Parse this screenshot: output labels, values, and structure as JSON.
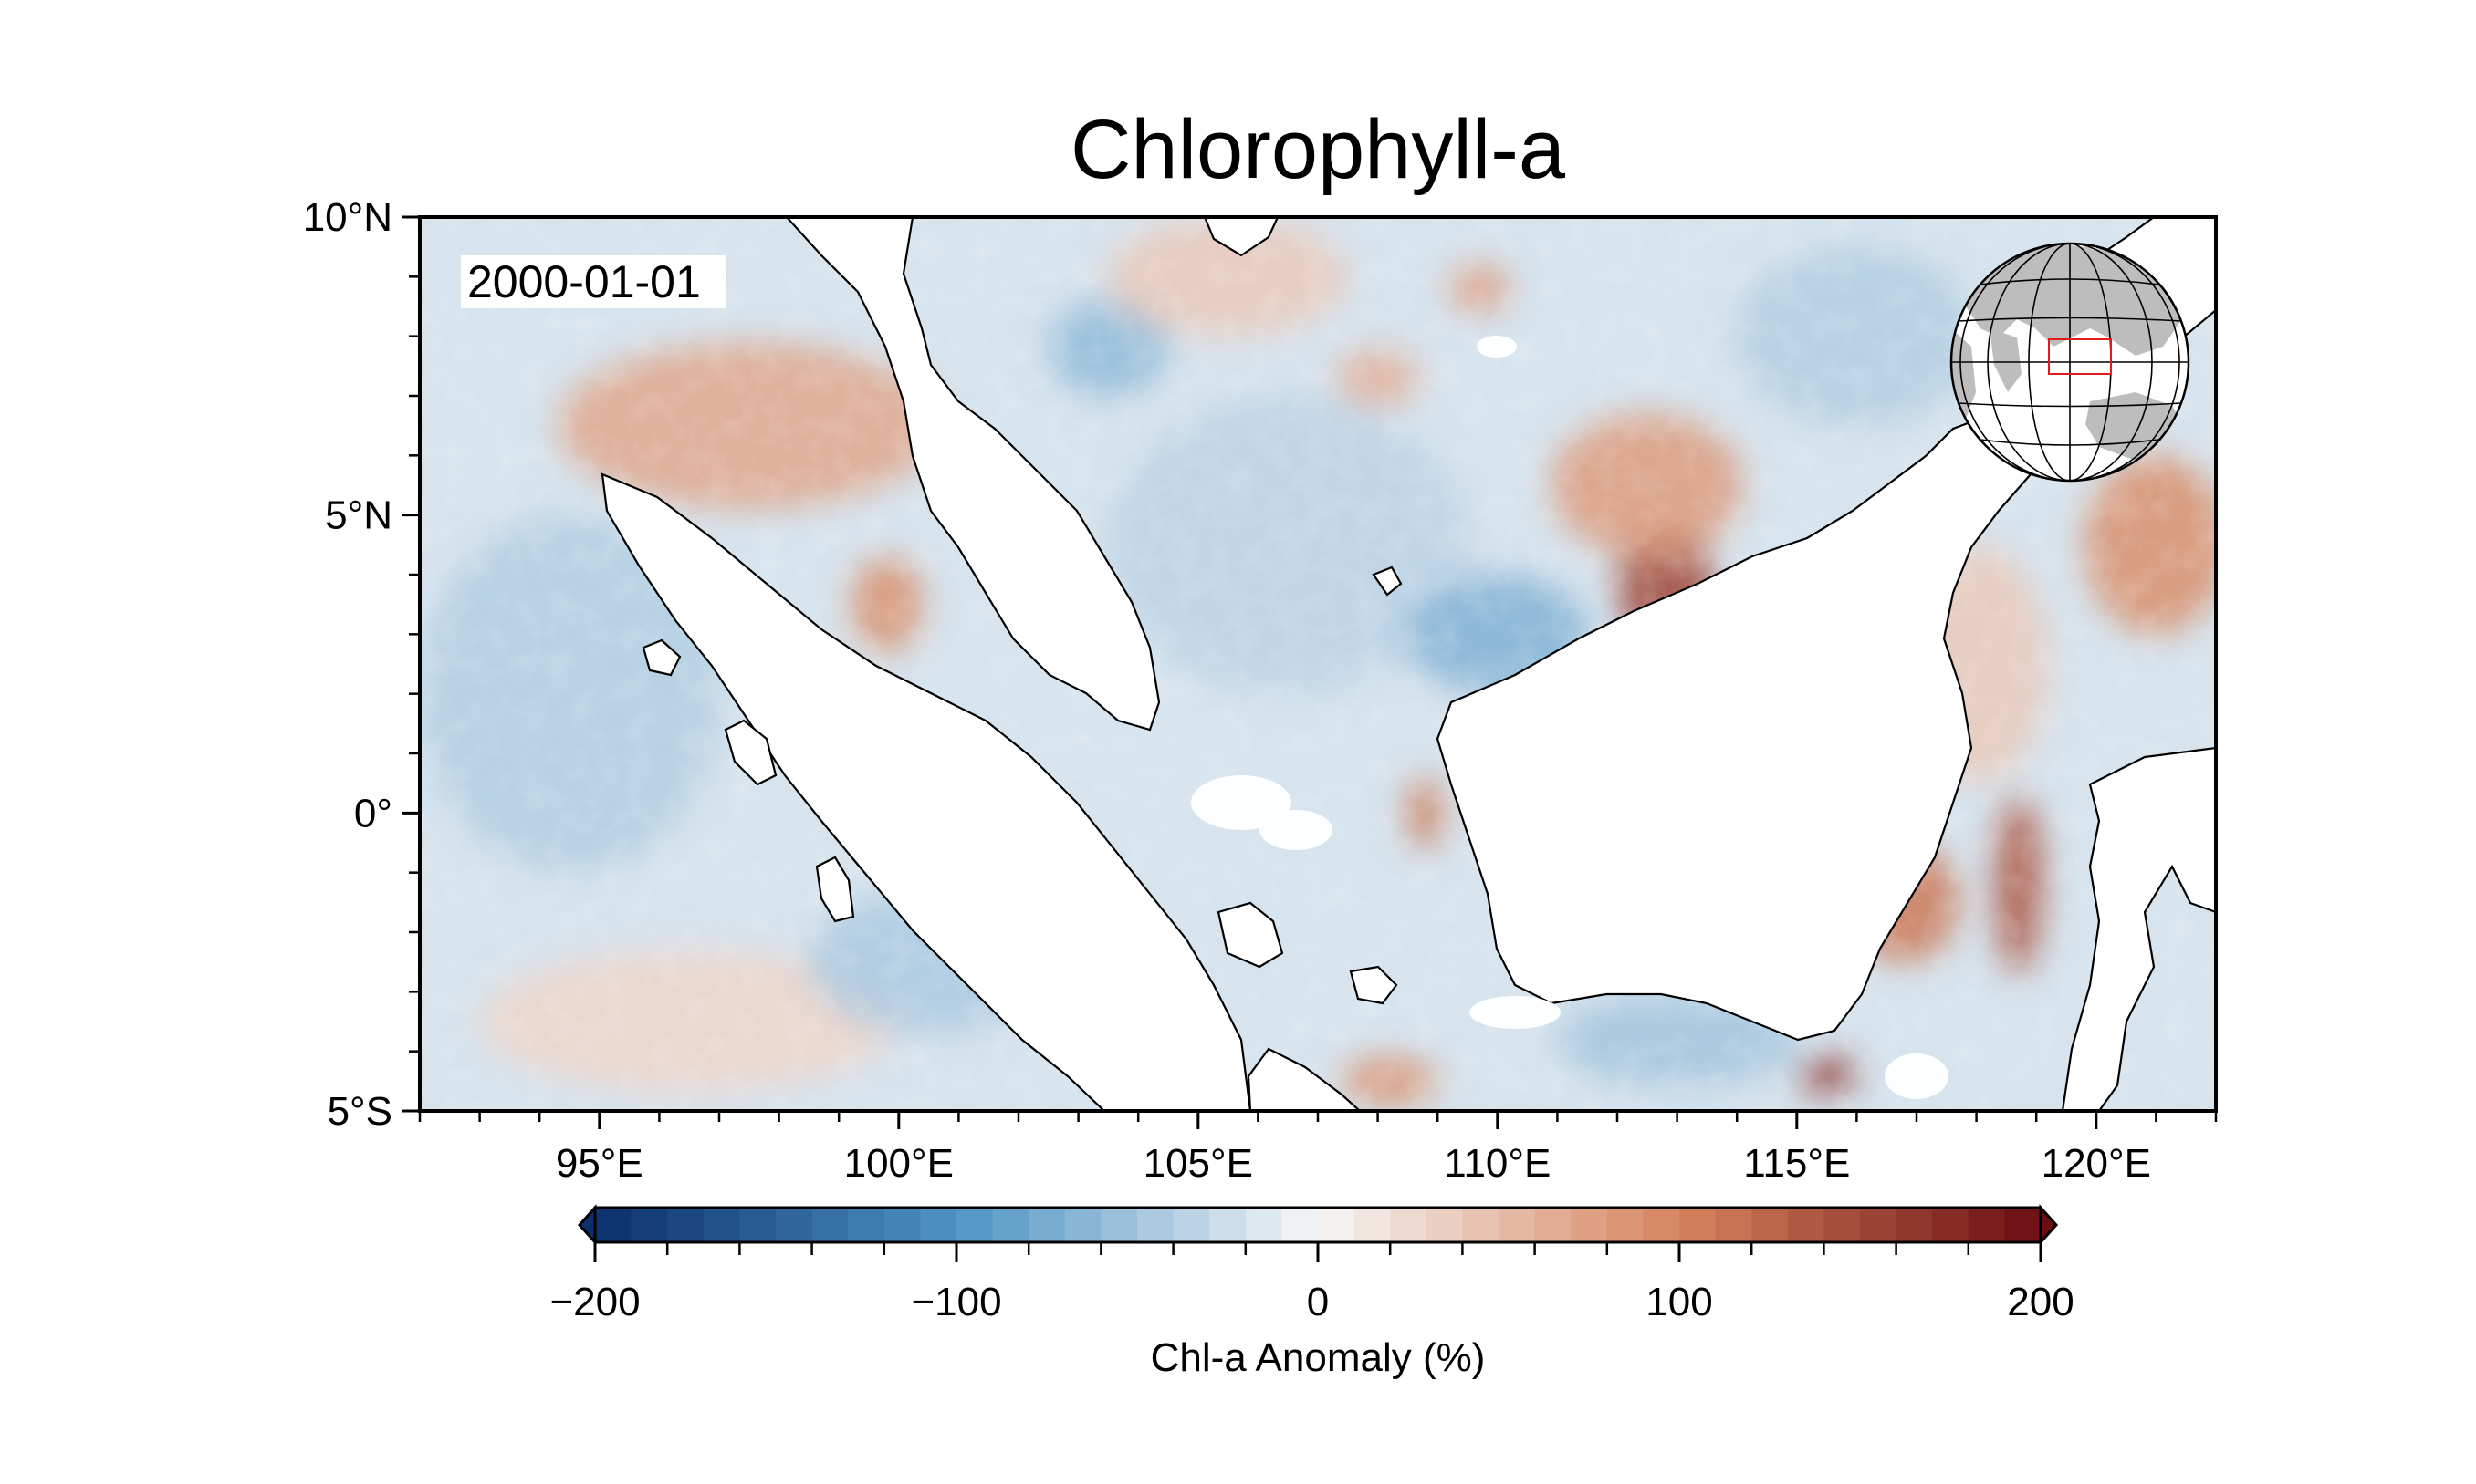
{
  "title": "Chlorophyll-a",
  "date_label": "2000-01-01",
  "map": {
    "lon_range": [
      92,
      122
    ],
    "lat_range": [
      -5,
      10
    ],
    "lon_ticks": [
      {
        "value": 95,
        "label": "95°E"
      },
      {
        "value": 100,
        "label": "100°E"
      },
      {
        "value": 105,
        "label": "105°E"
      },
      {
        "value": 110,
        "label": "110°E"
      },
      {
        "value": 115,
        "label": "115°E"
      },
      {
        "value": 120,
        "label": "120°E"
      }
    ],
    "lat_ticks": [
      {
        "value": 10,
        "label": "10°N"
      },
      {
        "value": 5,
        "label": "5°N"
      },
      {
        "value": 0,
        "label": "0°"
      },
      {
        "value": -5,
        "label": "5°S"
      }
    ],
    "land_color": "#ffffff",
    "coastline_color": "#000000",
    "anomaly_patches": [
      {
        "lon": 97.5,
        "lat": 6.5,
        "rx": 3.2,
        "ry": 1.4,
        "value": 70
      },
      {
        "lon": 99.8,
        "lat": 3.5,
        "rx": 0.6,
        "ry": 0.8,
        "value": 90
      },
      {
        "lon": 94.5,
        "lat": 2.0,
        "rx": 2.5,
        "ry": 3.0,
        "value": -40
      },
      {
        "lon": 96.5,
        "lat": -3.5,
        "rx": 3.5,
        "ry": 1.2,
        "value": 30
      },
      {
        "lon": 103.5,
        "lat": 7.8,
        "rx": 1.0,
        "ry": 0.8,
        "value": -60
      },
      {
        "lon": 105.5,
        "lat": 9.0,
        "rx": 2.0,
        "ry": 1.0,
        "value": 40
      },
      {
        "lon": 106.5,
        "lat": 4.5,
        "rx": 3.0,
        "ry": 2.5,
        "value": -35
      },
      {
        "lon": 110.0,
        "lat": 3.0,
        "rx": 1.5,
        "ry": 1.0,
        "value": -70
      },
      {
        "lon": 112.8,
        "lat": 3.8,
        "rx": 0.8,
        "ry": 1.0,
        "value": 150
      },
      {
        "lon": 112.5,
        "lat": 5.5,
        "rx": 1.6,
        "ry": 1.2,
        "value": 80
      },
      {
        "lon": 109.7,
        "lat": 8.8,
        "rx": 0.5,
        "ry": 0.4,
        "value": 80
      },
      {
        "lon": 108.0,
        "lat": 7.3,
        "rx": 0.7,
        "ry": 0.5,
        "value": 60
      },
      {
        "lon": 116.0,
        "lat": 8.0,
        "rx": 2.0,
        "ry": 1.5,
        "value": -40
      },
      {
        "lon": 121.0,
        "lat": 4.5,
        "rx": 1.2,
        "ry": 1.5,
        "value": 90
      },
      {
        "lon": 116.8,
        "lat": -1.5,
        "rx": 0.9,
        "ry": 1.0,
        "value": 110
      },
      {
        "lon": 118.7,
        "lat": -1.2,
        "rx": 0.4,
        "ry": 1.5,
        "value": 140
      },
      {
        "lon": 115.5,
        "lat": -4.4,
        "rx": 0.5,
        "ry": 0.3,
        "value": 170
      },
      {
        "lon": 108.2,
        "lat": -4.5,
        "rx": 0.8,
        "ry": 0.4,
        "value": 90
      },
      {
        "lon": 108.8,
        "lat": 0.0,
        "rx": 0.3,
        "ry": 0.6,
        "value": 110
      },
      {
        "lon": 113.0,
        "lat": -3.8,
        "rx": 2.0,
        "ry": 0.8,
        "value": -50
      },
      {
        "lon": 100.5,
        "lat": -2.5,
        "rx": 2.0,
        "ry": 1.2,
        "value": -45
      },
      {
        "lon": 118.0,
        "lat": 2.5,
        "rx": 1.2,
        "ry": 2.0,
        "value": 40
      }
    ]
  },
  "inset_globe": {
    "land_color": "#bdbdbd",
    "outline_color": "#000000",
    "box_color": "#e31a1c"
  },
  "colorbar": {
    "min": -200,
    "max": 200,
    "levels": 40,
    "ticks": [
      {
        "value": -200,
        "label": "−200"
      },
      {
        "value": -100,
        "label": "−100"
      },
      {
        "value": 0,
        "label": "0"
      },
      {
        "value": 100,
        "label": "100"
      },
      {
        "value": 200,
        "label": "200"
      }
    ],
    "minor_ticks": [
      -180,
      -160,
      -140,
      -120,
      -80,
      -60,
      -40,
      -20,
      20,
      40,
      60,
      80,
      120,
      140,
      160,
      180
    ],
    "label": "Chl-a Anomaly (%)",
    "colors": {
      "negative_end": "#0b2f6b",
      "negative_mid": "#4e93c3",
      "zero": "#f7f7f7",
      "positive_mid": "#d6845e",
      "positive_end": "#6b0d12"
    }
  }
}
